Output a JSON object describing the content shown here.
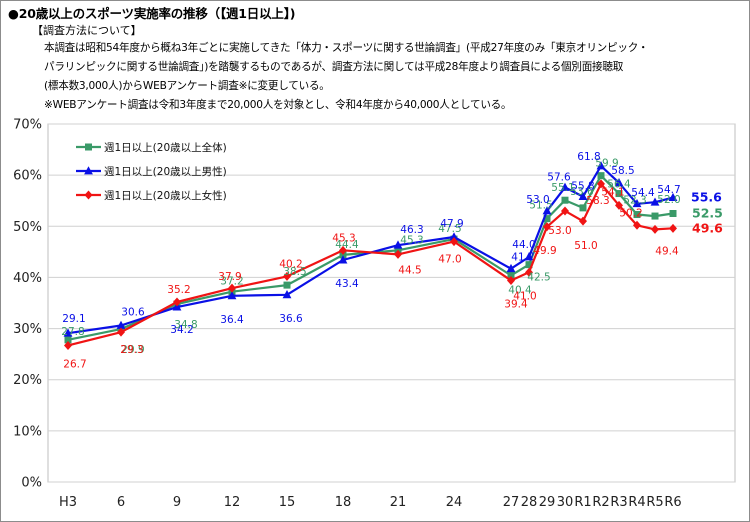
{
  "title": "●20歳以上のスポーツ実施率の推移（【週1日以上】)",
  "method_heading": "【調査方法について】",
  "notes": [
    "本調査は昭和54年度から概ね3年ごとに実施してきた「体力・スポーツに関する世論調査」(平成27年度のみ「東京オリンピック・",
    "パラリンピックに関する世論調査」)を踏襲するものであるが、調査方法に関しては平成28年度より調査員による個別面接聴取",
    "(標本数3,000人)からWEBアンケート調査※に変更している。",
    "※WEBアンケート調査は令和3年度まで20,000人を対象とし、令和4年度から40,000人としている。"
  ],
  "colors": {
    "all": "#3a9a68",
    "male": "#0a10e6",
    "female": "#f01414"
  },
  "chart_data": {
    "type": "line",
    "ylim": [
      0,
      70
    ],
    "yticks": [
      "0%",
      "10%",
      "20%",
      "30%",
      "40%",
      "50%",
      "60%",
      "70%"
    ],
    "categories": [
      "H3",
      "6",
      "9",
      "12",
      "15",
      "18",
      "21",
      "24",
      "27",
      "28",
      "29",
      "30",
      "R1",
      "R2",
      "R3",
      "R4",
      "R5",
      "R6"
    ],
    "series": [
      {
        "key": "all",
        "name": "週1日以上(20歳以上全体)",
        "marker": "square",
        "values": [
          27.8,
          29.9,
          34.8,
          37.2,
          38.5,
          44.4,
          45.3,
          47.5,
          40.4,
          42.5,
          51.5,
          55.1,
          53.6,
          59.9,
          56.4,
          52.3,
          52.0,
          52.5
        ],
        "labels": [
          "27.8",
          "29.9",
          "34.8",
          "37.2",
          "38.5",
          "44.4",
          "45.3",
          "47.5",
          "40.4",
          "42.5",
          "51.5",
          "55.1",
          "53.6",
          "59.9",
          "56.4",
          "52.3",
          "52.0",
          "52.5"
        ]
      },
      {
        "key": "male",
        "name": "週1日以上(20歳以上男性)",
        "marker": "triangle",
        "values": [
          29.1,
          30.6,
          34.2,
          36.4,
          36.6,
          43.4,
          46.3,
          47.9,
          41.7,
          44.0,
          53.0,
          57.6,
          55.8,
          61.8,
          58.5,
          54.4,
          54.7,
          55.6
        ],
        "labels": [
          "29.1",
          "30.6",
          "34.2",
          "36.4",
          "36.6",
          "43.4",
          "46.3",
          "47.9",
          "41.7",
          "44.0",
          "53.0",
          "57.6",
          "55.8",
          "61.8",
          "58.5",
          "54.4",
          "54.7",
          "55.6"
        ]
      },
      {
        "key": "female",
        "name": "週1日以上(20歳以上女性)",
        "marker": "diamond",
        "values": [
          26.7,
          29.3,
          35.2,
          37.9,
          40.2,
          45.3,
          44.5,
          47.0,
          39.4,
          41.0,
          49.9,
          53.0,
          51.0,
          58.3,
          54.1,
          50.2,
          49.4,
          49.6
        ],
        "labels": [
          "26.7",
          "29.3",
          "35.2",
          "37.9",
          "40.2",
          "45.3",
          "44.5",
          "47.0",
          "39.4",
          "41.0",
          "49.9",
          "53.0",
          "51.0",
          "58.3",
          "54.1",
          "50.2",
          "49.4",
          "49.6"
        ]
      }
    ]
  }
}
